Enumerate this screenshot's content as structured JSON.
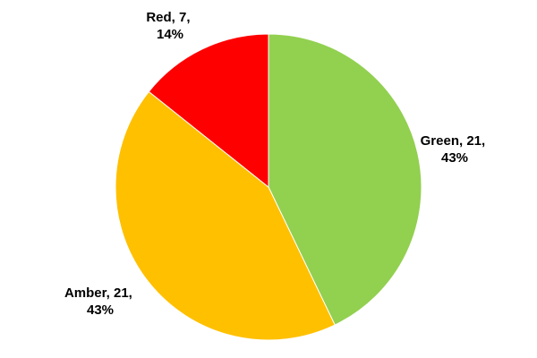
{
  "chart_data": {
    "type": "pie",
    "title": "",
    "start_angle": "12 o'clock",
    "direction": "clockwise",
    "legend": "none",
    "slices": [
      {
        "label": "Green",
        "value": 21,
        "percent": "43%",
        "color": "#92d050",
        "label_line1": "Green, 21,",
        "label_line2": "43%"
      },
      {
        "label": "Amber",
        "value": 21,
        "percent": "43%",
        "color": "#ffc000",
        "label_line1": "Amber, 21,",
        "label_line2": "43%"
      },
      {
        "label": "Red",
        "value": 7,
        "percent": "14%",
        "color": "#ff0000",
        "label_line1": "Red, 7,",
        "label_line2": "14%"
      }
    ]
  }
}
